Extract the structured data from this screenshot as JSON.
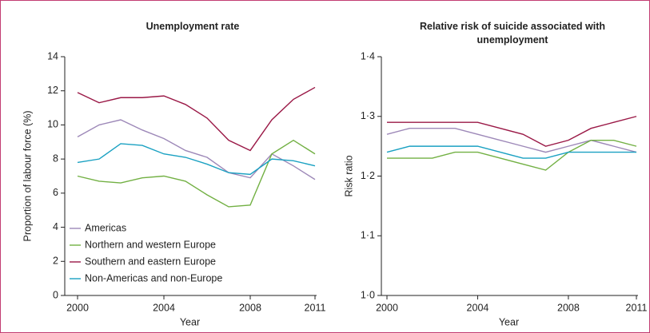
{
  "chart_data": [
    {
      "type": "line",
      "title": "Unemployment rate",
      "xlabel": "Year",
      "ylabel": "Proportion of labour force (%)",
      "x": [
        2000,
        2001,
        2002,
        2003,
        2004,
        2005,
        2006,
        2007,
        2008,
        2009,
        2010,
        2011
      ],
      "xlim": [
        2000,
        2011
      ],
      "xticks": [
        2000,
        2004,
        2008,
        2011
      ],
      "ylim": [
        0,
        14
      ],
      "yticks": [
        0,
        2,
        4,
        6,
        8,
        10,
        12,
        14
      ],
      "legend": "lower left",
      "series": [
        {
          "name": "Americas",
          "color": "#9d88b8",
          "values": [
            9.3,
            10.0,
            10.3,
            9.7,
            9.2,
            8.5,
            8.1,
            7.2,
            6.9,
            8.3,
            7.6,
            6.8
          ]
        },
        {
          "name": "Northern and western Europe",
          "color": "#72b043",
          "values": [
            7.0,
            6.7,
            6.6,
            6.9,
            7.0,
            6.7,
            5.9,
            5.2,
            5.3,
            8.3,
            9.1,
            8.3
          ]
        },
        {
          "name": "Southern and eastern Europe",
          "color": "#9a1846",
          "values": [
            11.9,
            11.3,
            11.6,
            11.6,
            11.7,
            11.2,
            10.4,
            9.1,
            8.5,
            10.3,
            11.5,
            12.2
          ]
        },
        {
          "name": "Non-Americas and non-Europe",
          "color": "#1aa1c2",
          "values": [
            7.8,
            8.0,
            8.9,
            8.8,
            8.3,
            8.1,
            7.7,
            7.2,
            7.1,
            8.0,
            7.9,
            7.6
          ]
        }
      ]
    },
    {
      "type": "line",
      "title": "Relative risk of suicide associated with unemployment",
      "xlabel": "Year",
      "ylabel": "Risk ratio",
      "x": [
        2000,
        2001,
        2002,
        2003,
        2004,
        2005,
        2006,
        2007,
        2008,
        2009,
        2010,
        2011
      ],
      "xlim": [
        2000,
        2011
      ],
      "xticks": [
        2000,
        2004,
        2008,
        2011
      ],
      "ylim": [
        1.0,
        1.4
      ],
      "yticks": [
        {
          "value": 1.0,
          "label": "1·0"
        },
        {
          "value": 1.1,
          "label": "1·1"
        },
        {
          "value": 1.2,
          "label": "1·2"
        },
        {
          "value": 1.3,
          "label": "1·3"
        },
        {
          "value": 1.4,
          "label": "1·4"
        }
      ],
      "series": [
        {
          "color": "#9d88b8",
          "values": [
            1.27,
            1.28,
            1.28,
            1.28,
            1.27,
            1.26,
            1.25,
            1.24,
            1.25,
            1.26,
            1.25,
            1.24
          ]
        },
        {
          "color": "#72b043",
          "values": [
            1.23,
            1.23,
            1.23,
            1.24,
            1.24,
            1.23,
            1.22,
            1.21,
            1.24,
            1.26,
            1.26,
            1.25
          ]
        },
        {
          "color": "#9a1846",
          "values": [
            1.29,
            1.29,
            1.29,
            1.29,
            1.29,
            1.28,
            1.27,
            1.25,
            1.26,
            1.28,
            1.29,
            1.3
          ]
        },
        {
          "color": "#1aa1c2",
          "values": [
            1.24,
            1.25,
            1.25,
            1.25,
            1.25,
            1.24,
            1.23,
            1.23,
            1.24,
            1.24,
            1.24,
            1.24
          ]
        }
      ]
    }
  ]
}
